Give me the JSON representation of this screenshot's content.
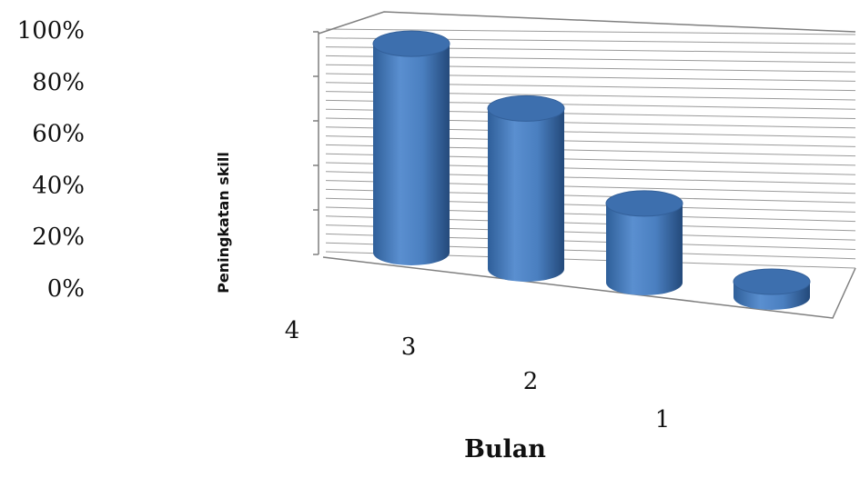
{
  "chart_data": {
    "type": "bar",
    "style": "3d-cylinder",
    "categories": [
      "4",
      "3",
      "2",
      "1"
    ],
    "values": [
      95,
      73,
      36,
      7
    ],
    "xlabel": "Bulan",
    "ylabel": "Peningkatan skill",
    "ylim": [
      0,
      100
    ],
    "yticks": [
      "0%",
      "20%",
      "40%",
      "60%",
      "80%",
      "100%"
    ],
    "grid": true,
    "bar_color": "#4f81bd"
  }
}
